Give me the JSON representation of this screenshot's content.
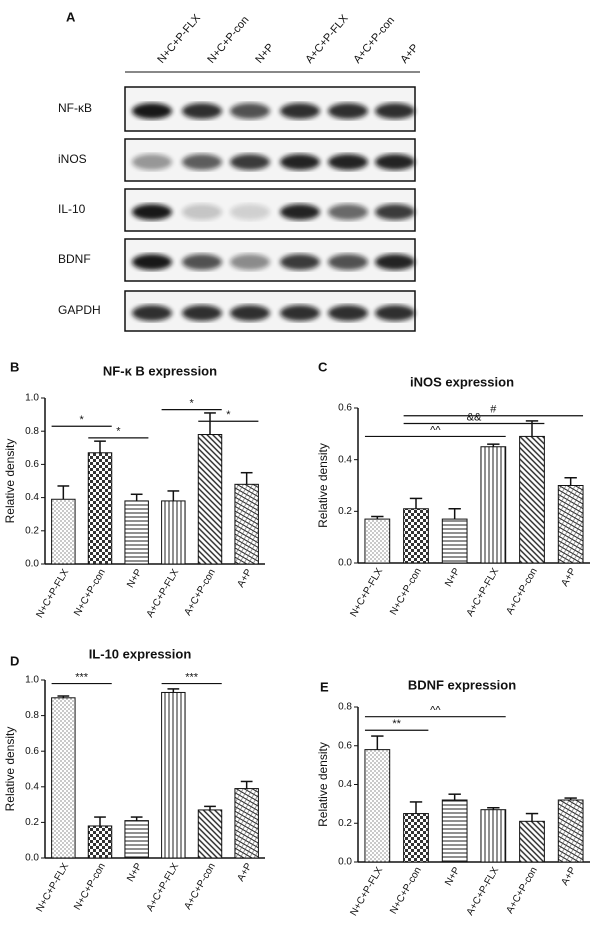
{
  "blot": {
    "panel": "A",
    "columns": [
      "N+C+P-FLX",
      "N+C+P-con",
      "N+P",
      "A+C+P-FLX",
      "A+C+P-con",
      "A+P"
    ],
    "rows": [
      "NF-κB",
      "iNOS",
      "IL-10",
      "BDNF",
      "GAPDH"
    ]
  },
  "chart_data": [
    {
      "type": "bar",
      "panel": "B",
      "title": "NF-κ B expression",
      "y_label": "Relative density",
      "categories": [
        "N+C+P-FLX",
        "N+C+P-con",
        "N+P",
        "A+C+P-FLX",
        "A+C+P-con",
        "A+P"
      ],
      "values": [
        0.39,
        0.67,
        0.38,
        0.38,
        0.78,
        0.48
      ],
      "errors": [
        0.08,
        0.07,
        0.04,
        0.06,
        0.13,
        0.07
      ],
      "ylim": [
        0,
        1
      ],
      "yticks": [
        {
          "value": 0,
          "label": "0.0"
        },
        0.2,
        0.4,
        0.6,
        0.8,
        {
          "value": 1,
          "label": "1.0"
        }
      ],
      "annotations": [
        "*",
        "*",
        "*",
        "*"
      ]
    },
    {
      "type": "bar",
      "panel": "C",
      "title": "iNOS expression",
      "y_label": "Relative density",
      "categories": [
        "N+C+P-FLX",
        "N+C+P-con",
        "N+P",
        "A+C+P-FLX",
        "A+C+P-con",
        "A+P"
      ],
      "values": [
        0.17,
        0.21,
        0.17,
        0.45,
        0.49,
        0.3
      ],
      "errors": [
        0.01,
        0.04,
        0.04,
        0.01,
        0.06,
        0.03
      ],
      "ylim": [
        0,
        0.6
      ],
      "yticks": [
        {
          "value": 0,
          "label": "0.0"
        },
        0.2,
        0.4,
        0.6
      ],
      "annotations": [
        "^^",
        "&&",
        "#"
      ]
    },
    {
      "type": "bar",
      "panel": "D",
      "title": "IL-10 expression",
      "y_label": "Relative density",
      "categories": [
        "N+C+P-FLX",
        "N+C+P-con",
        "N+P",
        "A+C+P-FLX",
        "A+C+P-con",
        "A+P"
      ],
      "values": [
        0.9,
        0.18,
        0.21,
        0.93,
        0.27,
        0.39
      ],
      "errors": [
        0.01,
        0.05,
        0.02,
        0.02,
        0.02,
        0.04
      ],
      "ylim": [
        0,
        1
      ],
      "yticks": [
        {
          "value": 0,
          "label": "0.0"
        },
        0.2,
        0.4,
        0.6,
        0.8,
        {
          "value": 1,
          "label": "1.0"
        }
      ],
      "annotations": [
        "***",
        "***"
      ]
    },
    {
      "type": "bar",
      "panel": "E",
      "title": "BDNF expression",
      "y_label": "Relative density",
      "categories": [
        "N+C+P-FLX",
        "N+C+P-con",
        "N+P",
        "A+C+P-FLX",
        "A+C+P-con",
        "A+P"
      ],
      "values": [
        0.58,
        0.25,
        0.32,
        0.27,
        0.21,
        0.32
      ],
      "errors": [
        0.07,
        0.06,
        0.03,
        0.01,
        0.04,
        0.01
      ],
      "ylim": [
        0,
        0.8
      ],
      "yticks": [
        {
          "value": 0,
          "label": "0.0"
        },
        0.2,
        0.4,
        0.6,
        0.8
      ],
      "annotations": [
        "**",
        "^^"
      ]
    }
  ]
}
